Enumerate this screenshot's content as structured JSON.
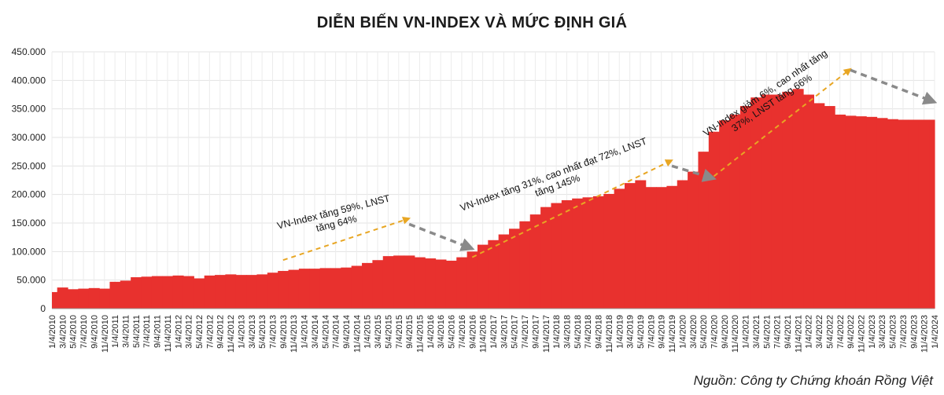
{
  "chart_data": {
    "type": "area",
    "title": "DIỄN BIẾN VN-INDEX VÀ MỨC ĐỊNH GIÁ",
    "source": "Nguồn: Công ty Chứng khoán Rồng Việt",
    "ylim": [
      0,
      450000
    ],
    "y_ticks": [
      "0",
      "50.000",
      "100.000",
      "150.000",
      "200.000",
      "250.000",
      "300.000",
      "350.000",
      "400.000",
      "450.000"
    ],
    "grid": true,
    "color": "#e8312e",
    "x_labels": [
      "1/4/2010",
      "3/4/2010",
      "5/4/2010",
      "7/4/2010",
      "9/4/2010",
      "11/4/2010",
      "1/4/2011",
      "3/4/2011",
      "5/4/2011",
      "7/4/2011",
      "9/4/2011",
      "11/4/2011",
      "1/4/2012",
      "3/4/2012",
      "5/4/2012",
      "7/4/2012",
      "9/4/2012",
      "11/4/2012",
      "1/4/2013",
      "3/4/2013",
      "5/4/2013",
      "7/4/2013",
      "9/4/2013",
      "11/4/2013",
      "1/4/2014",
      "3/4/2014",
      "5/4/2014",
      "7/4/2014",
      "9/4/2014",
      "11/4/2014",
      "1/4/2015",
      "3/4/2015",
      "5/4/2015",
      "7/4/2015",
      "9/4/2015",
      "11/4/2015",
      "1/4/2016",
      "3/4/2016",
      "5/4/2016",
      "7/4/2016",
      "9/4/2016",
      "11/4/2016",
      "1/4/2017",
      "3/4/2017",
      "5/4/2017",
      "7/4/2017",
      "9/4/2017",
      "11/4/2017",
      "1/4/2018",
      "3/4/2018",
      "5/4/2018",
      "7/4/2018",
      "9/4/2018",
      "11/4/2018",
      "1/4/2019",
      "3/4/2019",
      "5/4/2019",
      "7/4/2019",
      "9/4/2019",
      "11/4/2019",
      "1/4/2020",
      "3/4/2020",
      "5/4/2020",
      "7/4/2020",
      "9/4/2020",
      "11/4/2020",
      "1/4/2021",
      "3/4/2021",
      "5/4/2021",
      "7/4/2021",
      "9/4/2021",
      "11/4/2021",
      "1/4/2022",
      "3/4/2022",
      "5/4/2022",
      "7/4/2022",
      "9/4/2022",
      "11/4/2022",
      "1/4/2023",
      "3/4/2023",
      "5/4/2023",
      "7/4/2023",
      "9/4/2023",
      "11/4/2023",
      "1/4/2024"
    ],
    "values": [
      29000,
      37000,
      34000,
      35000,
      36000,
      35000,
      47000,
      49000,
      55000,
      56000,
      57000,
      57000,
      58000,
      57000,
      53000,
      58000,
      59000,
      60000,
      59000,
      59000,
      60000,
      63000,
      66000,
      68000,
      70000,
      70000,
      71000,
      71000,
      72000,
      75000,
      80000,
      85000,
      92000,
      93000,
      93000,
      90000,
      88000,
      86000,
      84000,
      90000,
      100000,
      112000,
      120000,
      130000,
      140000,
      153000,
      165000,
      178000,
      185000,
      190000,
      193000,
      195000,
      197000,
      201000,
      210000,
      220000,
      225000,
      213000,
      213000,
      215000,
      225000,
      240000,
      275000,
      310000,
      330000,
      340000,
      355000,
      370000,
      375000,
      375000,
      380000,
      385000,
      375000,
      360000,
      355000,
      340000,
      338000,
      337000,
      336000,
      334000,
      332000,
      331000,
      331000,
      331000,
      331000
    ],
    "annotations": [
      {
        "lines": [
          "VN-Index tăng 59%, LNST",
          "tăng 64%"
        ]
      },
      {
        "lines": [
          "VN-Index tăng 31%, cao nhất đạt 72%, LNST",
          "tăng 145%"
        ]
      },
      {
        "lines": [
          "VN-Index giảm 6%, cao nhất tăng",
          "37%, LNST tăng 66%"
        ]
      }
    ],
    "arrows": [
      {
        "type": "up",
        "from": 22,
        "from_value": 85000,
        "to": 34,
        "to_value": 158000
      },
      {
        "type": "down",
        "from": 34,
        "from_value": 148000,
        "to": 40,
        "to_value": 105000
      },
      {
        "type": "up",
        "from": 40,
        "from_value": 90000,
        "to": 59,
        "to_value": 260000
      },
      {
        "type": "down",
        "from": 59,
        "from_value": 250000,
        "to": 63,
        "to_value": 228000
      },
      {
        "type": "up",
        "from": 63,
        "from_value": 232000,
        "to": 76,
        "to_value": 420000
      },
      {
        "type": "down",
        "from": 76,
        "from_value": 418000,
        "to": 84,
        "to_value": 362000
      }
    ]
  }
}
